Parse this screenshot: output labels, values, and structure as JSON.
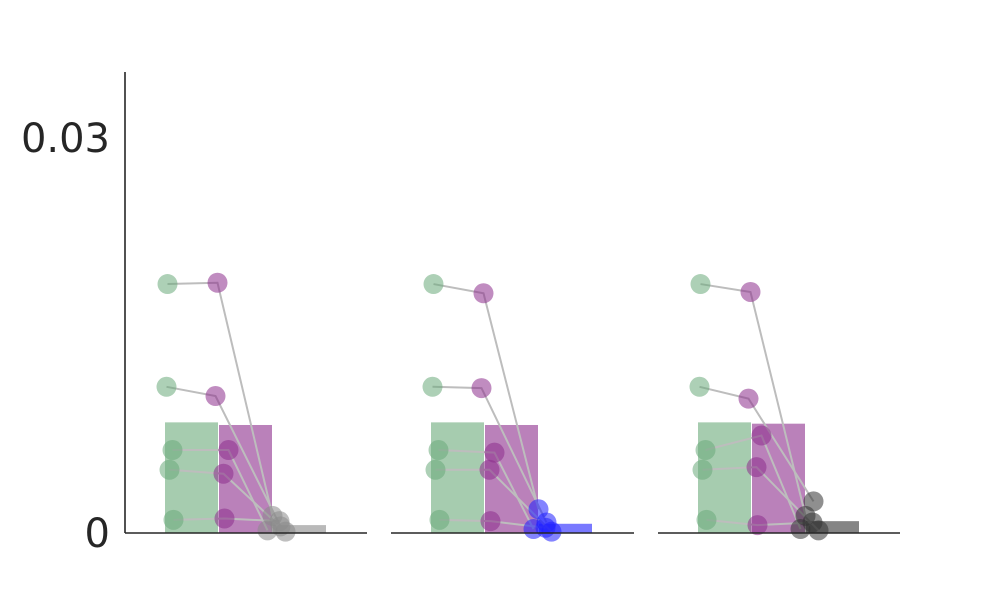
{
  "chart_data": {
    "type": "bar",
    "title": "",
    "xlabel": "",
    "ylabel": "",
    "ylim": [
      0,
      0.035
    ],
    "yticks": [
      {
        "value": 0,
        "label": "0"
      },
      {
        "value": 0.03,
        "label": "0.03"
      }
    ],
    "grid": false,
    "legend": "none",
    "panels": [
      {
        "bars": [
          {
            "value": 0.0084,
            "color": "#6aaa7a"
          },
          {
            "value": 0.0082,
            "color": "#8c2d8c"
          },
          {
            "value": 0.0006,
            "color": "#8a8a8a"
          }
        ],
        "subjects": [
          [
            0.0189,
            0.019,
            0.0013
          ],
          [
            0.0111,
            0.0104,
            0.0005
          ],
          [
            0.0063,
            0.0063,
            0.0002
          ],
          [
            0.0048,
            0.0045,
            0.0001
          ],
          [
            0.001,
            0.0011,
            0.0009
          ]
        ]
      },
      {
        "bars": [
          {
            "value": 0.0084,
            "color": "#6aaa7a"
          },
          {
            "value": 0.0082,
            "color": "#8c2d8c"
          },
          {
            "value": 0.0007,
            "color": "#1f1fff"
          }
        ],
        "subjects": [
          [
            0.0189,
            0.0182,
            0.0018
          ],
          [
            0.0111,
            0.011,
            0.0008
          ],
          [
            0.0063,
            0.0061,
            0.0003
          ],
          [
            0.0048,
            0.0048,
            0.0001
          ],
          [
            0.001,
            0.0009,
            0.0004
          ]
        ]
      },
      {
        "bars": [
          {
            "value": 0.0084,
            "color": "#6aaa7a"
          },
          {
            "value": 0.0083,
            "color": "#8c2d8c"
          },
          {
            "value": 0.0009,
            "color": "#333333"
          }
        ],
        "subjects": [
          [
            0.0189,
            0.0183,
            0.0013
          ],
          [
            0.0111,
            0.0102,
            0.0024
          ],
          [
            0.0063,
            0.0074,
            0.0003
          ],
          [
            0.0048,
            0.005,
            0.0002
          ],
          [
            0.001,
            0.0006,
            0.0008
          ]
        ]
      }
    ],
    "dot_colors": [
      "#6aaa7a",
      "#8c2d8c",
      null
    ],
    "connector_color": "#bdbdbd"
  }
}
